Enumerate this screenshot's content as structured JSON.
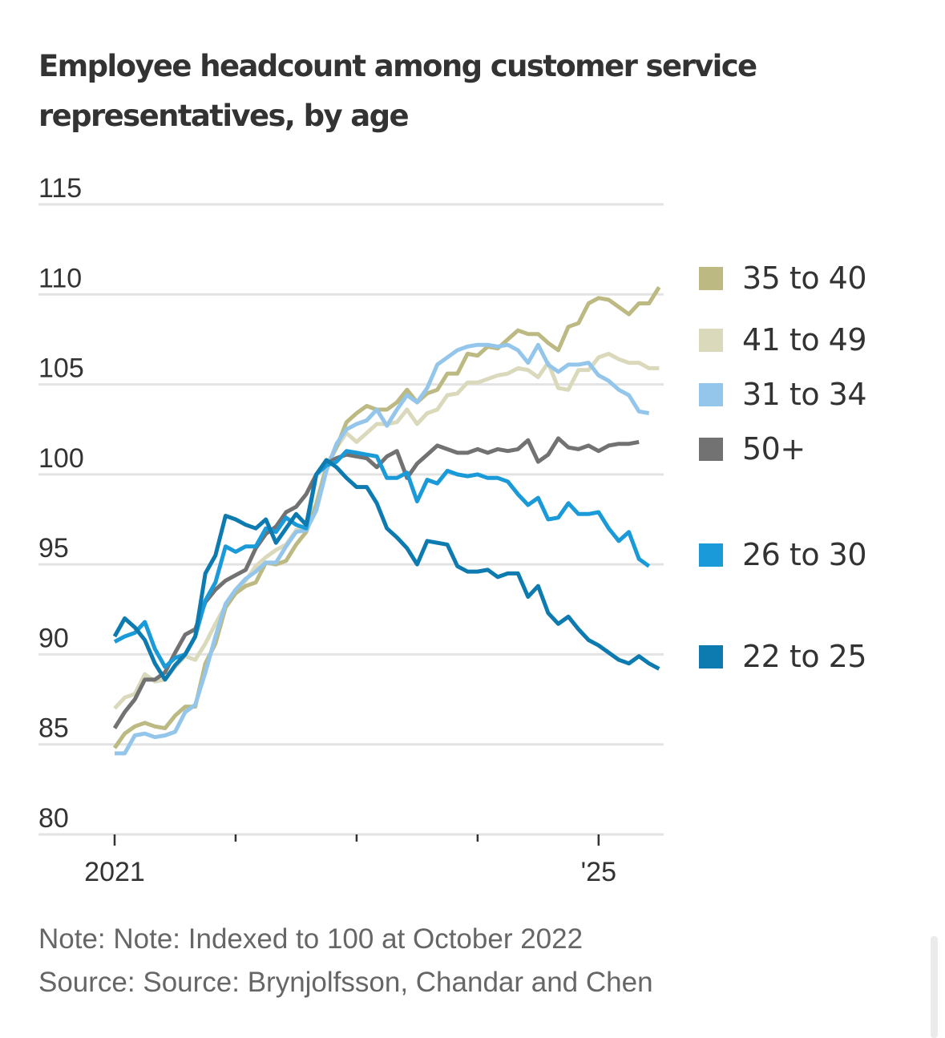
{
  "title": "Employee headcount among customer service representatives, by age",
  "note": "Note: Note: Indexed to 100 at October 2022",
  "source": "Source: Source: Brynjolfsson, Chandar and Chen",
  "chart_data": {
    "type": "line",
    "title": "Employee headcount among customer service representatives, by age",
    "xlabel": "",
    "ylabel": "",
    "x_start": "2021-01",
    "x_frequency": "monthly",
    "x_tick_labels": [
      "2021",
      "",
      "",
      "",
      "'25"
    ],
    "x_ticks_years": [
      2021,
      2022,
      2023,
      2024,
      2025
    ],
    "y_ticks": [
      80,
      85,
      90,
      95,
      100,
      105,
      110,
      115
    ],
    "ylim": [
      80,
      115
    ],
    "grid": true,
    "legend_position": "right",
    "series": [
      {
        "name": "35 to 40",
        "color": "#bcb982",
        "values": [
          84.8,
          85.6,
          86.0,
          86.2,
          86.0,
          85.9,
          86.6,
          87.1,
          87.1,
          89.5,
          90.6,
          92.6,
          93.4,
          93.8,
          94.0,
          95.1,
          95.0,
          95.2,
          96.1,
          96.8,
          98.3,
          100.4,
          101.5,
          102.9,
          103.4,
          103.8,
          103.6,
          103.6,
          104.0,
          104.7,
          104.0,
          104.5,
          104.7,
          105.6,
          105.6,
          106.7,
          106.6,
          107.1,
          107.0,
          107.5,
          108.0,
          107.8,
          107.8,
          107.3,
          106.9,
          108.2,
          108.4,
          109.5,
          109.8,
          109.7,
          109.3,
          108.9,
          109.5,
          109.5,
          110.4
        ]
      },
      {
        "name": "41 to 49",
        "color": "#dbd9bc",
        "values": [
          87.0,
          87.6,
          87.8,
          88.9,
          88.5,
          88.6,
          89.3,
          89.9,
          89.7,
          90.6,
          91.7,
          92.7,
          93.5,
          94.1,
          94.9,
          95.4,
          95.8,
          96.1,
          96.9,
          97.2,
          98.4,
          100.5,
          101.5,
          102.3,
          101.8,
          102.3,
          102.8,
          102.8,
          102.9,
          103.6,
          102.8,
          103.4,
          103.6,
          104.4,
          104.5,
          105.1,
          105.1,
          105.3,
          105.5,
          105.6,
          105.9,
          105.8,
          105.4,
          106.2,
          104.8,
          104.7,
          105.8,
          105.8,
          106.5,
          106.7,
          106.4,
          106.2,
          106.2,
          105.9,
          105.9
        ]
      },
      {
        "name": "31 to 34",
        "color": "#93c6ea",
        "values": [
          84.5,
          84.5,
          85.5,
          85.6,
          85.4,
          85.5,
          85.7,
          86.8,
          87.2,
          89.0,
          91.0,
          92.8,
          93.6,
          94.2,
          94.6,
          95.1,
          95.1,
          96.0,
          96.8,
          96.9,
          98.0,
          100.2,
          101.7,
          102.5,
          102.8,
          103.0,
          103.6,
          102.7,
          103.6,
          104.4,
          104.0,
          104.8,
          106.1,
          106.5,
          106.9,
          107.1,
          107.2,
          107.2,
          107.1,
          107.2,
          106.9,
          106.2,
          107.2,
          106.1,
          105.7,
          106.1,
          106.1,
          106.2,
          105.5,
          105.2,
          104.7,
          104.4,
          103.5,
          103.4
        ]
      },
      {
        "name": "50+",
        "color": "#727272",
        "values": [
          85.9,
          86.8,
          87.5,
          88.6,
          88.6,
          89.0,
          90.1,
          91.1,
          91.4,
          92.9,
          93.6,
          94.1,
          94.4,
          94.7,
          95.9,
          96.7,
          97.1,
          97.9,
          98.2,
          98.9,
          100.0,
          100.6,
          100.9,
          101.1,
          101.0,
          100.9,
          100.4,
          101.0,
          101.3,
          99.8,
          100.6,
          101.1,
          101.6,
          101.4,
          101.2,
          101.2,
          101.4,
          101.2,
          101.4,
          101.3,
          101.4,
          101.9,
          100.7,
          101.1,
          102.0,
          101.5,
          101.4,
          101.6,
          101.3,
          101.6,
          101.7,
          101.7,
          101.8
        ]
      },
      {
        "name": "26 to 30",
        "color": "#1a9ad8",
        "values": [
          90.7,
          91.0,
          91.2,
          91.8,
          90.3,
          89.3,
          89.8,
          90.0,
          91.0,
          93.0,
          94.0,
          96.0,
          95.7,
          96.0,
          96.0,
          97.0,
          96.8,
          97.6,
          97.2,
          97.0,
          100.0,
          100.5,
          100.7,
          101.3,
          101.2,
          101.1,
          101.0,
          99.8,
          99.8,
          100.1,
          98.5,
          99.7,
          99.5,
          100.2,
          100.0,
          99.9,
          100.0,
          99.8,
          99.8,
          99.6,
          98.9,
          98.3,
          98.7,
          97.5,
          97.6,
          98.4,
          97.8,
          97.8,
          97.9,
          97.0,
          96.3,
          96.8,
          95.3,
          94.9
        ]
      },
      {
        "name": "22 to 25",
        "color": "#0d7ab0",
        "values": [
          91.0,
          92.0,
          91.5,
          90.8,
          89.5,
          88.6,
          89.4,
          90.0,
          91.0,
          94.5,
          95.5,
          97.7,
          97.5,
          97.2,
          97.0,
          97.5,
          96.2,
          97.0,
          97.8,
          97.2,
          100.0,
          100.8,
          100.4,
          99.8,
          99.3,
          99.3,
          98.4,
          97.0,
          96.5,
          95.9,
          95.0,
          96.3,
          96.2,
          96.1,
          94.9,
          94.6,
          94.6,
          94.7,
          94.3,
          94.5,
          94.5,
          93.2,
          93.8,
          92.3,
          91.7,
          92.1,
          91.4,
          90.8,
          90.5,
          90.1,
          89.7,
          89.5,
          89.9,
          89.5,
          89.2
        ]
      }
    ]
  }
}
